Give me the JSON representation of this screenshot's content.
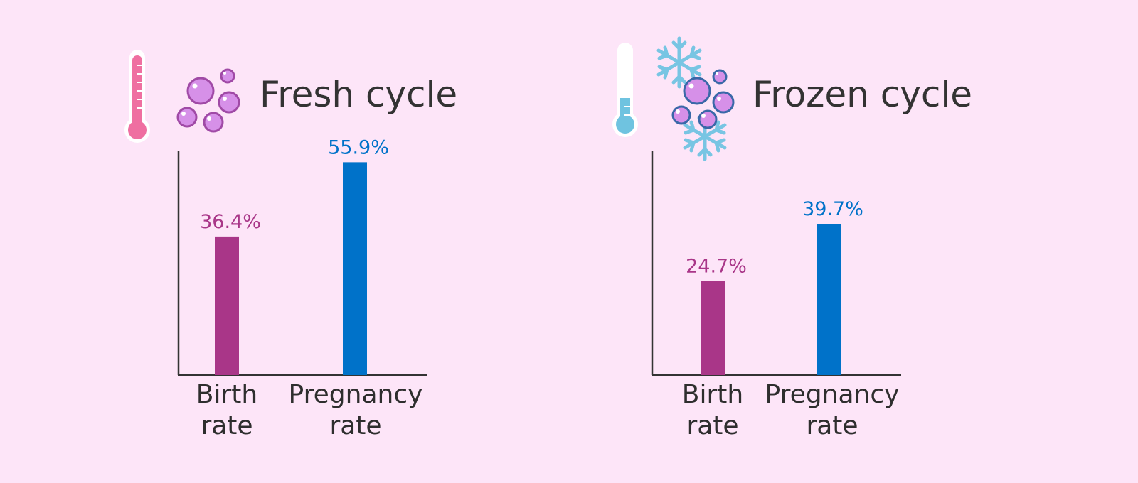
{
  "colors": {
    "background": "#fde5f8",
    "birth": "#a93688",
    "pregnancy": "#0072c9",
    "thermo_fresh": "#ef6fa1",
    "thermo_frozen": "#6fc3e0",
    "embryo": "#d690e8",
    "embryo_stroke": "#a04aa6",
    "snowflake": "#78c5e3"
  },
  "chart_data": [
    {
      "type": "bar",
      "title": "Fresh cycle",
      "categories": [
        [
          "Birth",
          "rate"
        ],
        [
          "Pregnancy",
          "rate"
        ]
      ],
      "values": [
        36.4,
        55.9
      ],
      "value_labels": [
        "36.4%",
        "55.9%"
      ],
      "ylim": [
        0,
        65
      ],
      "xlabel": "",
      "ylabel": "",
      "grid": false
    },
    {
      "type": "bar",
      "title": "Frozen cycle",
      "categories": [
        [
          "Birth",
          "rate"
        ],
        [
          "Pregnancy",
          "rate"
        ]
      ],
      "values": [
        24.7,
        39.7
      ],
      "value_labels": [
        "24.7%",
        "39.7%"
      ],
      "ylim": [
        0,
        65
      ],
      "xlabel": "",
      "ylabel": "",
      "grid": false
    }
  ],
  "icons": {
    "fresh": [
      "thermometer-hot-icon",
      "embryo-cells-icon"
    ],
    "frozen": [
      "thermometer-cold-icon",
      "snowflake-icon",
      "frozen-embryo-cells-icon"
    ]
  }
}
